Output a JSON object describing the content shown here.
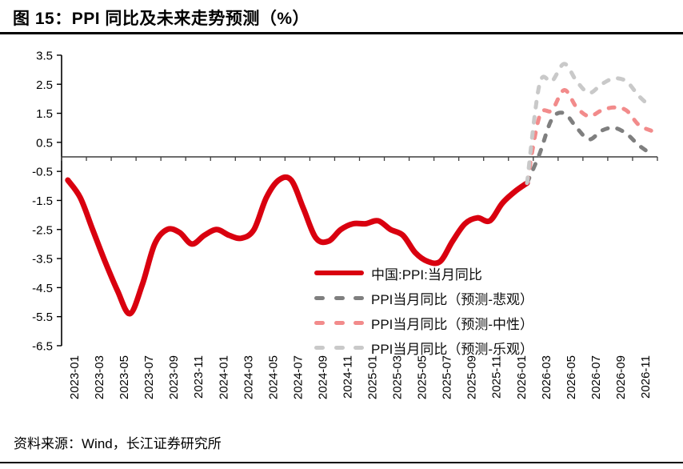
{
  "page": {
    "title": "图 15：PPI 同比及未来走势预测（%）",
    "source_note": "资料来源：Wind，长江证券研究所"
  },
  "chart_data": {
    "type": "line",
    "title": "图 15：PPI 同比及未来走势预测（%）",
    "xlabel": "",
    "ylabel": "",
    "unit": "%",
    "ylim": [
      -6.5,
      3.5
    ],
    "yticks": [
      3.5,
      2.5,
      1.5,
      0.5,
      -0.5,
      -1.5,
      -2.5,
      -3.5,
      -4.5,
      -5.5,
      -6.5
    ],
    "x_range": [
      "2023-01",
      "2026-12"
    ],
    "x_months_count": 48,
    "x_tick_labels": [
      "2023-01",
      "2023-03",
      "2023-05",
      "2023-07",
      "2023-09",
      "2023-11",
      "2024-01",
      "2024-03",
      "2024-05",
      "2024-07",
      "2024-09",
      "2024-11",
      "2025-01",
      "2025-03",
      "2025-05",
      "2025-07",
      "2025-09",
      "2025-11",
      "2026-01",
      "2026-03",
      "2026-05",
      "2026-07",
      "2026-09",
      "2026-11"
    ],
    "grid": false,
    "legend_position": "inside-bottom-center",
    "series": [
      {
        "key": "actual",
        "name": "中国:PPI:当月同比",
        "color": "#d9000f",
        "style": "solid",
        "start_month": "2023-01",
        "start_index": 0,
        "values": [
          -0.8,
          -1.4,
          -2.5,
          -3.6,
          -4.6,
          -5.4,
          -4.4,
          -3.0,
          -2.5,
          -2.6,
          -3.0,
          -2.7,
          -2.5,
          -2.7,
          -2.8,
          -2.5,
          -1.4,
          -0.8,
          -0.8,
          -1.8,
          -2.8,
          -2.9,
          -2.5,
          -2.3,
          -2.3,
          -2.2,
          -2.5,
          -2.7,
          -3.3,
          -3.6,
          -3.6,
          -2.9,
          -2.3,
          -2.1,
          -2.2,
          -1.6,
          -1.2,
          -0.9
        ]
      },
      {
        "key": "forecast_pessimistic",
        "name": "PPI当月同比（预测-悲观）",
        "color": "#7f7f7f",
        "style": "dashed",
        "start_month": "2026-02",
        "start_index": 37,
        "values": [
          -0.9,
          0.1,
          1.3,
          1.5,
          1.0,
          0.6,
          0.9,
          1.0,
          0.8,
          0.4,
          0.1
        ]
      },
      {
        "key": "forecast_neutral",
        "name": "PPI当月同比（预测-中性）",
        "color": "#f28b8b",
        "style": "dashed",
        "start_month": "2026-02",
        "start_index": 37,
        "values": [
          -0.9,
          1.4,
          1.6,
          2.3,
          1.7,
          1.4,
          1.6,
          1.7,
          1.6,
          1.1,
          0.9
        ]
      },
      {
        "key": "forecast_optimistic",
        "name": "PPI当月同比（预测-乐观）",
        "color": "#c9c9c9",
        "style": "dashed",
        "start_month": "2026-02",
        "start_index": 37,
        "values": [
          -0.9,
          2.5,
          2.6,
          3.2,
          2.6,
          2.2,
          2.5,
          2.7,
          2.6,
          2.1,
          1.7
        ]
      }
    ]
  }
}
